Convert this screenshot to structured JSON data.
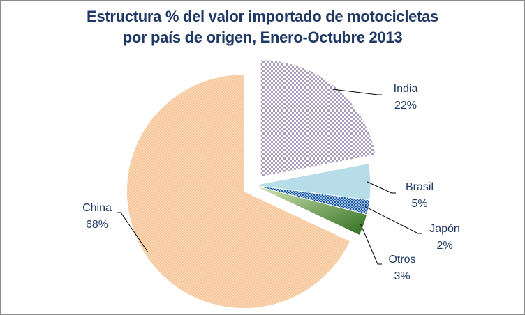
{
  "chart_data": {
    "type": "pie",
    "title_lines": [
      "Estructura % del valor importado de motocicletas",
      "por país de origen, Enero-Octubre 2013"
    ],
    "slices": [
      {
        "name": "India",
        "value": 22,
        "label_pct": "22%",
        "color": "#b9aec9",
        "pattern": "checker",
        "exploded": true
      },
      {
        "name": "Brasil",
        "value": 5,
        "label_pct": "5%",
        "color": "#b7dde8",
        "pattern": "solid",
        "exploded": false
      },
      {
        "name": "Japón",
        "value": 2,
        "label_pct": "2%",
        "color": "#1f5fa8",
        "pattern": "dots",
        "exploded": false
      },
      {
        "name": "Otros",
        "value": 3,
        "label_pct": "3%",
        "color": "#4e8a2e",
        "pattern": "gradient",
        "exploded": false
      },
      {
        "name": "China",
        "value": 68,
        "label_pct": "68%",
        "color": "#f5c89a",
        "pattern": "dots",
        "exploded": true
      }
    ],
    "legend": "none",
    "start_angle_deg": 90,
    "direction": "clockwise"
  }
}
